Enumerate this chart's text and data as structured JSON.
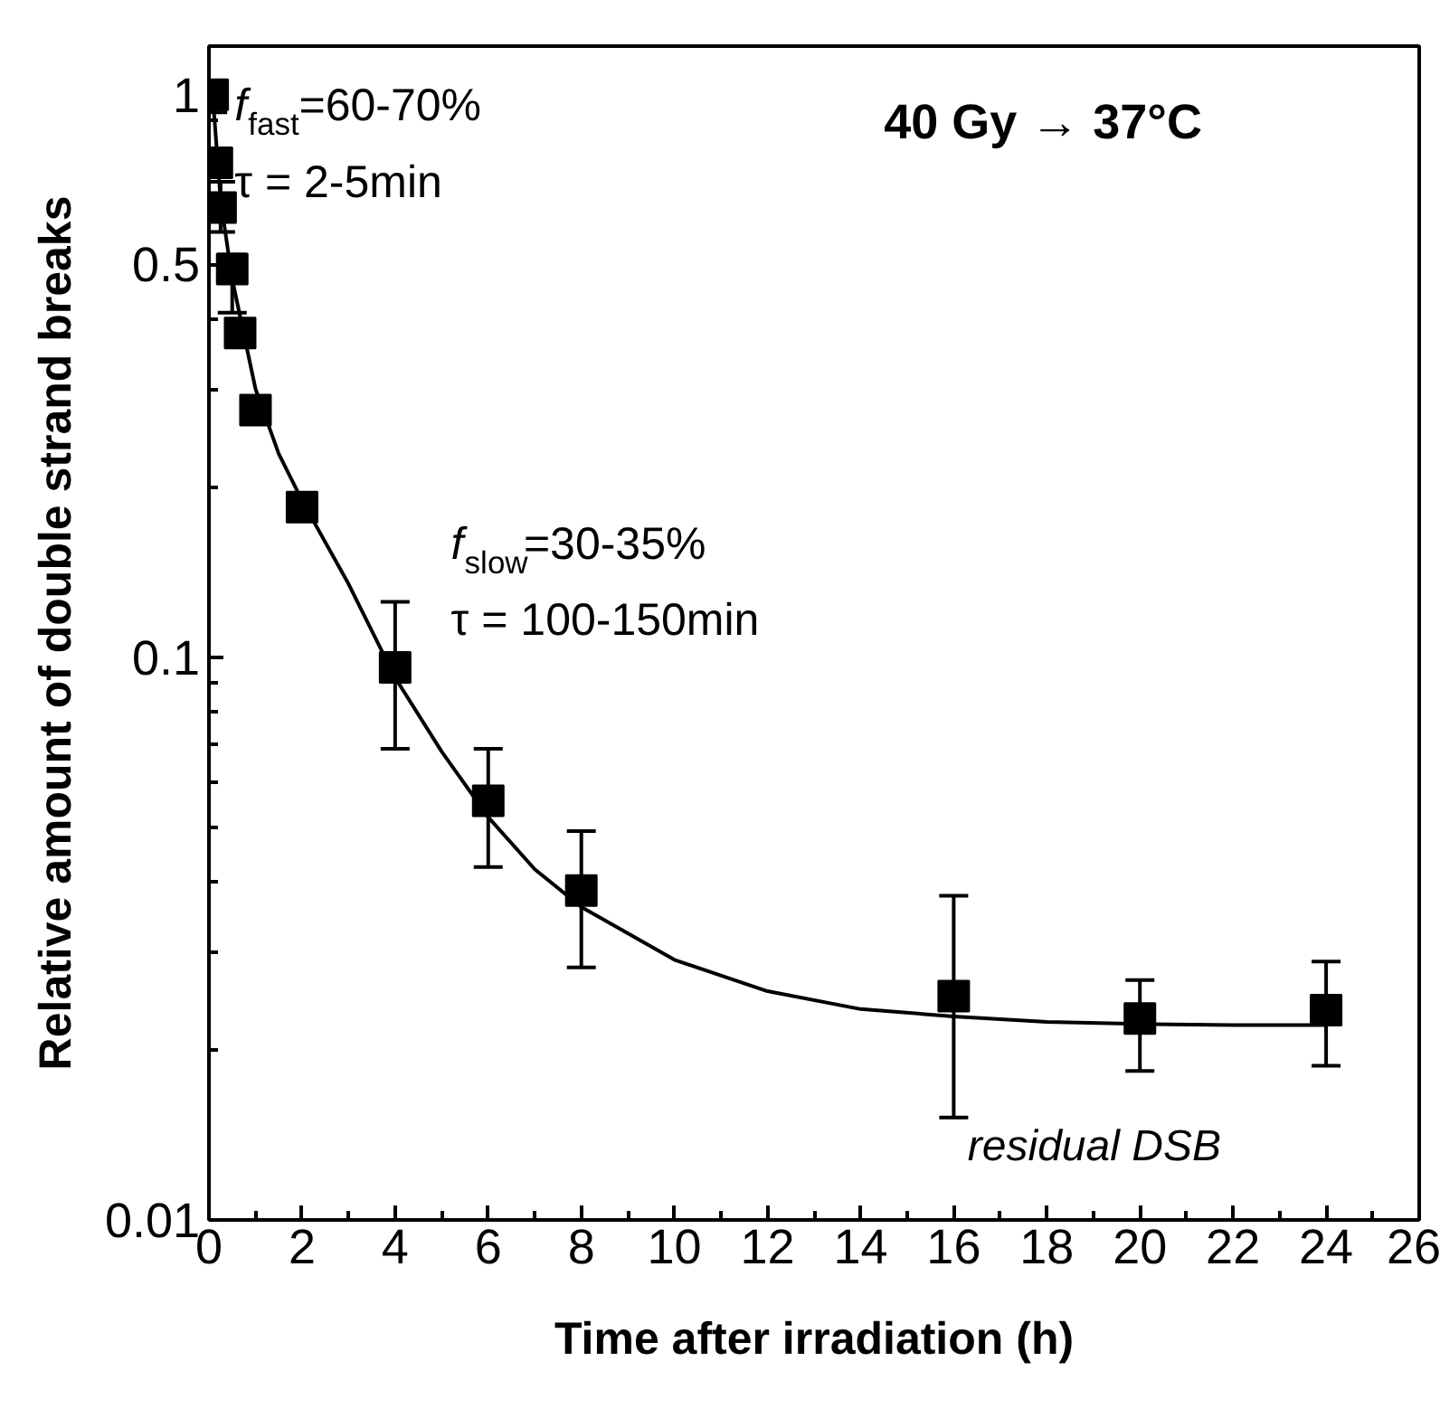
{
  "chart_data": {
    "type": "scatter",
    "xlabel": "Time after irradiation (h)",
    "ylabel": "Relative amount of double strand breaks",
    "x": [
      0.08,
      0.17,
      0.25,
      0.5,
      0.67,
      1,
      2,
      4,
      6,
      8,
      16,
      20,
      24
    ],
    "series": [
      {
        "color": "#000000",
        "marker": "square",
        "values": [
          1.0,
          0.757,
          0.63,
          0.49,
          0.377,
          0.275,
          0.185,
          0.096,
          0.0556,
          0.0385,
          0.025,
          0.0228,
          0.0236
        ],
        "errors": [
          [
            0.93,
            1.05
          ],
          [
            0.72,
            0.8
          ],
          [
            0.57,
            0.7
          ],
          [
            0.41,
            0.52
          ],
          null,
          [
            0.26,
            0.29
          ],
          null,
          [
            0.0688,
            0.1255
          ],
          [
            0.0424,
            0.0688
          ],
          [
            0.0281,
            0.0491
          ],
          [
            0.0152,
            0.0377
          ],
          [
            0.0184,
            0.0267
          ],
          [
            0.0188,
            0.0288
          ]
        ]
      },
      {
        "type": "line",
        "color": "#000000",
        "line_style": "solid",
        "x": [
          0.1,
          0.25,
          0.5,
          1,
          1.5,
          2,
          3,
          4,
          5,
          6,
          7,
          8,
          10,
          12,
          14,
          16,
          18,
          20,
          22,
          24
        ],
        "values": [
          0.95,
          0.65,
          0.47,
          0.3,
          0.23,
          0.19,
          0.135,
          0.092,
          0.068,
          0.052,
          0.042,
          0.036,
          0.029,
          0.0255,
          0.0237,
          0.023,
          0.0225,
          0.0223,
          0.0222,
          0.0222
        ]
      }
    ],
    "xlim": [
      0,
      26
    ],
    "xticks": [
      0,
      2,
      4,
      6,
      8,
      10,
      12,
      14,
      16,
      18,
      20,
      22,
      24,
      26
    ],
    "ylim": [
      0.01,
      1.22
    ],
    "yticks": [
      0.01,
      0.1,
      0.5,
      1
    ],
    "log": "y",
    "grid": false,
    "annotations": [
      "40 Gy → 37°C",
      "f$_{fast}$=60-70%",
      "τ = 2-5min",
      "f$_{slow}$=30-35%",
      "τ = 100-150min",
      "residual DSB"
    ]
  }
}
